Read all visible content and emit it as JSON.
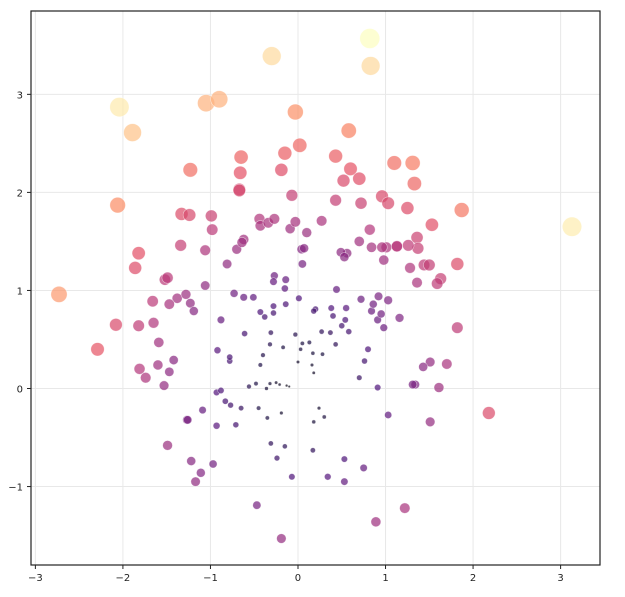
{
  "chart_data": {
    "type": "scatter",
    "title": "",
    "xlabel": "",
    "ylabel": "",
    "xlim": [
      -3.05,
      3.45
    ],
    "ylim": [
      -1.8,
      3.85
    ],
    "grid": true,
    "legend": null,
    "colormap": "magma",
    "color_encoding": "distance from origin (sqrt(x^2+y^2))",
    "size_encoding": "distance from origin",
    "alpha": 0.7,
    "xticks": [
      -3,
      -2,
      -1,
      0,
      1,
      2,
      3
    ],
    "yticks": [
      -1,
      0,
      1,
      2,
      3
    ],
    "xtick_labels": [
      "−3",
      "−2",
      "−1",
      "0",
      "1",
      "2",
      "3"
    ],
    "ytick_labels": [
      "−1",
      "0",
      "1",
      "2",
      "3"
    ],
    "points": [
      {
        "x": 0.82,
        "y": 3.57
      },
      {
        "x": 0.83,
        "y": 3.29
      },
      {
        "x": -0.3,
        "y": 3.39
      },
      {
        "x": -2.04,
        "y": 2.87
      },
      {
        "x": -1.89,
        "y": 2.61
      },
      {
        "x": -1.05,
        "y": 2.91
      },
      {
        "x": -0.9,
        "y": 2.95
      },
      {
        "x": -0.03,
        "y": 2.82
      },
      {
        "x": 0.58,
        "y": 2.63
      },
      {
        "x": 3.13,
        "y": 1.65
      },
      {
        "x": -2.73,
        "y": 0.96
      },
      {
        "x": -2.06,
        "y": 1.87
      },
      {
        "x": 1.87,
        "y": 1.82
      },
      {
        "x": 1.1,
        "y": 2.3
      },
      {
        "x": 1.31,
        "y": 2.3
      },
      {
        "x": 1.33,
        "y": 2.09
      },
      {
        "x": 0.02,
        "y": 2.48
      },
      {
        "x": -0.15,
        "y": 2.4
      },
      {
        "x": -0.19,
        "y": 2.23
      },
      {
        "x": 0.43,
        "y": 2.37
      },
      {
        "x": 0.6,
        "y": 2.24
      },
      {
        "x": 0.52,
        "y": 2.12
      },
      {
        "x": 0.7,
        "y": 2.14
      },
      {
        "x": -1.23,
        "y": 2.23
      },
      {
        "x": -0.65,
        "y": 2.36
      },
      {
        "x": -0.66,
        "y": 2.2
      },
      {
        "x": -0.67,
        "y": 2.03
      },
      {
        "x": -0.67,
        "y": 2.02
      },
      {
        "x": -0.07,
        "y": 1.97
      },
      {
        "x": 0.43,
        "y": 1.92
      },
      {
        "x": 0.96,
        "y": 1.96
      },
      {
        "x": 1.03,
        "y": 1.89
      },
      {
        "x": 1.25,
        "y": 1.84
      },
      {
        "x": 0.72,
        "y": 1.89
      },
      {
        "x": -1.33,
        "y": 1.78
      },
      {
        "x": -1.24,
        "y": 1.77
      },
      {
        "x": -0.99,
        "y": 1.76
      },
      {
        "x": -0.98,
        "y": 1.62
      },
      {
        "x": -1.34,
        "y": 1.46
      },
      {
        "x": -1.06,
        "y": 1.41
      },
      {
        "x": -0.7,
        "y": 1.42
      },
      {
        "x": -0.62,
        "y": 1.52
      },
      {
        "x": -0.64,
        "y": 1.49
      },
      {
        "x": -0.81,
        "y": 1.27
      },
      {
        "x": -0.44,
        "y": 1.73
      },
      {
        "x": -0.43,
        "y": 1.66
      },
      {
        "x": -0.34,
        "y": 1.69
      },
      {
        "x": -0.27,
        "y": 1.73
      },
      {
        "x": -0.09,
        "y": 1.63
      },
      {
        "x": -0.03,
        "y": 1.7
      },
      {
        "x": 0.1,
        "y": 1.59
      },
      {
        "x": 0.27,
        "y": 1.71
      },
      {
        "x": 0.82,
        "y": 1.62
      },
      {
        "x": 1.53,
        "y": 1.67
      },
      {
        "x": 1.36,
        "y": 1.54
      },
      {
        "x": 1.37,
        "y": 1.43
      },
      {
        "x": 1.26,
        "y": 1.46
      },
      {
        "x": 1.13,
        "y": 1.45
      },
      {
        "x": 1.01,
        "y": 1.44
      },
      {
        "x": 0.96,
        "y": 1.44
      },
      {
        "x": 0.98,
        "y": 1.31
      },
      {
        "x": 0.7,
        "y": 1.5
      },
      {
        "x": 0.84,
        "y": 1.44
      },
      {
        "x": 0.56,
        "y": 1.38
      },
      {
        "x": 0.49,
        "y": 1.39
      },
      {
        "x": 0.53,
        "y": 1.34
      },
      {
        "x": 1.28,
        "y": 1.23
      },
      {
        "x": 1.44,
        "y": 1.26
      },
      {
        "x": 1.5,
        "y": 1.26
      },
      {
        "x": 1.82,
        "y": 1.27
      },
      {
        "x": 1.63,
        "y": 1.12
      },
      {
        "x": 1.59,
        "y": 1.07
      },
      {
        "x": 0.04,
        "y": 1.42
      },
      {
        "x": 0.07,
        "y": 1.43
      },
      {
        "x": 0.05,
        "y": 1.27
      },
      {
        "x": -0.27,
        "y": 1.15
      },
      {
        "x": -0.28,
        "y": 1.09
      },
      {
        "x": -0.14,
        "y": 1.11
      },
      {
        "x": -0.15,
        "y": 1.02
      },
      {
        "x": -1.82,
        "y": 1.38
      },
      {
        "x": -1.86,
        "y": 1.23
      },
      {
        "x": -1.52,
        "y": 1.11
      },
      {
        "x": -1.49,
        "y": 1.13
      },
      {
        "x": -1.06,
        "y": 1.05
      },
      {
        "x": -1.38,
        "y": 0.92
      },
      {
        "x": -1.28,
        "y": 0.96
      },
      {
        "x": -1.23,
        "y": 0.87
      },
      {
        "x": -1.19,
        "y": 0.79
      },
      {
        "x": -1.47,
        "y": 0.86
      },
      {
        "x": -1.66,
        "y": 0.89
      },
      {
        "x": -1.82,
        "y": 0.64
      },
      {
        "x": -1.65,
        "y": 0.67
      },
      {
        "x": -2.08,
        "y": 0.65
      },
      {
        "x": -2.29,
        "y": 0.4
      },
      {
        "x": -1.59,
        "y": 0.47
      },
      {
        "x": -1.81,
        "y": 0.2
      },
      {
        "x": -1.74,
        "y": 0.11
      },
      {
        "x": -1.6,
        "y": 0.24
      },
      {
        "x": -1.47,
        "y": 0.17
      },
      {
        "x": -1.42,
        "y": 0.29
      },
      {
        "x": -1.53,
        "y": 0.03
      },
      {
        "x": -0.73,
        "y": 0.97
      },
      {
        "x": -0.62,
        "y": 0.93
      },
      {
        "x": -0.51,
        "y": 0.93
      },
      {
        "x": -0.88,
        "y": 0.7
      },
      {
        "x": -0.61,
        "y": 0.56
      },
      {
        "x": -0.92,
        "y": 0.39
      },
      {
        "x": -0.78,
        "y": 0.28
      },
      {
        "x": -0.78,
        "y": 0.32
      },
      {
        "x": -0.38,
        "y": 0.73
      },
      {
        "x": -0.43,
        "y": 0.78
      },
      {
        "x": -0.28,
        "y": 0.77
      },
      {
        "x": -0.28,
        "y": 0.84
      },
      {
        "x": -0.14,
        "y": 0.86
      },
      {
        "x": 0.01,
        "y": 0.92
      },
      {
        "x": -0.31,
        "y": 0.57
      },
      {
        "x": -0.32,
        "y": 0.45
      },
      {
        "x": -0.17,
        "y": 0.42
      },
      {
        "x": -0.4,
        "y": 0.34
      },
      {
        "x": -0.43,
        "y": 0.24
      },
      {
        "x": 0.2,
        "y": 0.81
      },
      {
        "x": 0.18,
        "y": 0.79
      },
      {
        "x": 0.38,
        "y": 0.82
      },
      {
        "x": 0.4,
        "y": 0.74
      },
      {
        "x": 0.55,
        "y": 0.82
      },
      {
        "x": 0.54,
        "y": 0.7
      },
      {
        "x": 0.5,
        "y": 0.64
      },
      {
        "x": 0.37,
        "y": 0.57
      },
      {
        "x": 0.58,
        "y": 0.58
      },
      {
        "x": 0.84,
        "y": 0.79
      },
      {
        "x": 0.91,
        "y": 0.7
      },
      {
        "x": 0.98,
        "y": 0.62
      },
      {
        "x": 1.03,
        "y": 0.9
      },
      {
        "x": 0.92,
        "y": 0.94
      },
      {
        "x": 0.86,
        "y": 0.86
      },
      {
        "x": 0.95,
        "y": 0.76
      },
      {
        "x": 1.16,
        "y": 0.72
      },
      {
        "x": 1.36,
        "y": 1.08
      },
      {
        "x": 1.13,
        "y": 1.45
      },
      {
        "x": 0.44,
        "y": 1.01
      },
      {
        "x": 0.72,
        "y": 0.91
      },
      {
        "x": 0.27,
        "y": 0.58
      },
      {
        "x": 0.43,
        "y": 0.45
      },
      {
        "x": 0.28,
        "y": 0.35
      },
      {
        "x": 0.13,
        "y": 0.47
      },
      {
        "x": 0.17,
        "y": 0.36
      },
      {
        "x": 0.05,
        "y": 0.46
      },
      {
        "x": 0.03,
        "y": 0.4
      },
      {
        "x": -0.03,
        "y": 0.55
      },
      {
        "x": 0.0,
        "y": 0.27
      },
      {
        "x": 0.16,
        "y": 0.24
      },
      {
        "x": 0.18,
        "y": 0.16
      },
      {
        "x": 0.8,
        "y": 0.4
      },
      {
        "x": 0.76,
        "y": 0.28
      },
      {
        "x": 0.7,
        "y": 0.11
      },
      {
        "x": 0.91,
        "y": 0.01
      },
      {
        "x": 1.34,
        "y": 0.04
      },
      {
        "x": 1.31,
        "y": 0.04
      },
      {
        "x": 1.51,
        "y": 0.27
      },
      {
        "x": 1.43,
        "y": 0.22
      },
      {
        "x": 1.61,
        "y": 0.01
      },
      {
        "x": 1.7,
        "y": 0.25
      },
      {
        "x": 1.82,
        "y": 0.62
      },
      {
        "x": 2.18,
        "y": -0.25
      },
      {
        "x": 1.51,
        "y": -0.34
      },
      {
        "x": 1.03,
        "y": -0.27
      },
      {
        "x": -0.1,
        "y": 0.02
      },
      {
        "x": -0.21,
        "y": 0.04
      },
      {
        "x": -0.25,
        "y": 0.06
      },
      {
        "x": -0.13,
        "y": 0.03
      },
      {
        "x": -0.36,
        "y": 0.0
      },
      {
        "x": -0.32,
        "y": 0.05
      },
      {
        "x": -0.48,
        "y": 0.05
      },
      {
        "x": -0.56,
        "y": 0.02
      },
      {
        "x": -0.93,
        "y": -0.04
      },
      {
        "x": -0.88,
        "y": -0.02
      },
      {
        "x": -0.83,
        "y": -0.13
      },
      {
        "x": -0.77,
        "y": -0.17
      },
      {
        "x": -0.65,
        "y": -0.2
      },
      {
        "x": -0.71,
        "y": -0.37
      },
      {
        "x": -0.93,
        "y": -0.38
      },
      {
        "x": -1.09,
        "y": -0.22
      },
      {
        "x": -1.27,
        "y": -0.32
      },
      {
        "x": -0.45,
        "y": -0.2
      },
      {
        "x": -0.35,
        "y": -0.3
      },
      {
        "x": -0.19,
        "y": -0.25
      },
      {
        "x": -0.31,
        "y": -0.56
      },
      {
        "x": -0.24,
        "y": -0.71
      },
      {
        "x": -0.15,
        "y": -0.59
      },
      {
        "x": -0.07,
        "y": -0.9
      },
      {
        "x": 0.17,
        "y": -0.63
      },
      {
        "x": 0.24,
        "y": -0.2
      },
      {
        "x": 0.3,
        "y": -0.29
      },
      {
        "x": 0.18,
        "y": -0.34
      },
      {
        "x": 0.53,
        "y": -0.72
      },
      {
        "x": 0.75,
        "y": -0.81
      },
      {
        "x": 0.53,
        "y": -0.95
      },
      {
        "x": 0.34,
        "y": -0.9
      },
      {
        "x": 1.22,
        "y": -1.22
      },
      {
        "x": 0.89,
        "y": -1.36
      },
      {
        "x": -1.49,
        "y": -0.58
      },
      {
        "x": -1.22,
        "y": -0.74
      },
      {
        "x": -0.97,
        "y": -0.77
      },
      {
        "x": -1.11,
        "y": -0.86
      },
      {
        "x": -1.17,
        "y": -0.95
      },
      {
        "x": -0.47,
        "y": -1.19
      },
      {
        "x": -0.19,
        "y": -1.53
      },
      {
        "x": -1.26,
        "y": -0.32
      }
    ]
  }
}
